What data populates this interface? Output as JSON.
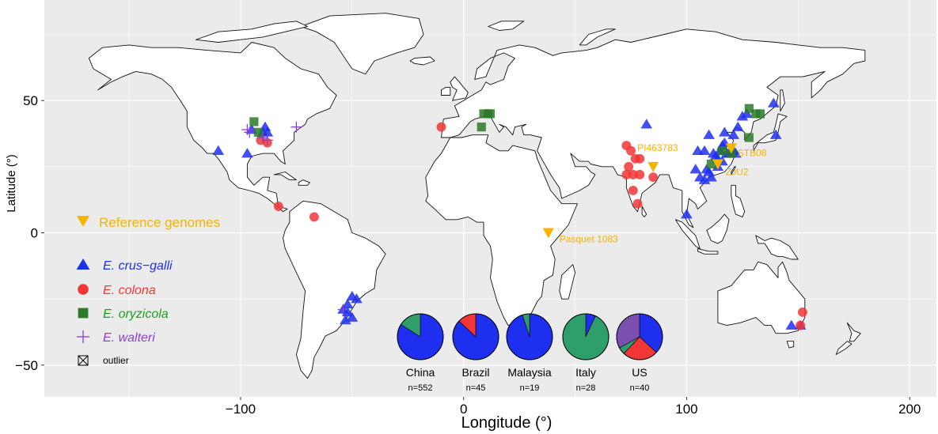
{
  "axes": {
    "xlabel": "Longitude (°)",
    "ylabel": "Latitude (°)",
    "x_ticks": [
      {
        "value": -100,
        "label": "−100"
      },
      {
        "value": 0,
        "label": "0"
      },
      {
        "value": 100,
        "label": "100"
      },
      {
        "value": 200,
        "label": "200"
      }
    ],
    "y_ticks": [
      {
        "value": 50,
        "label": "50"
      },
      {
        "value": 0,
        "label": "0"
      },
      {
        "value": -50,
        "label": "−50"
      }
    ],
    "xlim": [
      -188,
      212
    ],
    "ylim": [
      -62,
      88
    ]
  },
  "legend": {
    "reference": {
      "label": "Reference genomes",
      "color": "#f5b400"
    },
    "species": [
      {
        "key": "crus",
        "label": "E. crus−galli",
        "color": "#1f2ff0",
        "shape": "triangle"
      },
      {
        "key": "colona",
        "label": "E. colona",
        "color": "#f23535",
        "shape": "circle"
      },
      {
        "key": "oryzicola",
        "label": "E. oryzicola",
        "color": "#2a7a2a",
        "shape": "square",
        "label_color": "#1aa31a"
      },
      {
        "key": "walteri",
        "label": "E. walteri",
        "color": "#8a3fd6",
        "shape": "plus"
      }
    ],
    "outlier": {
      "label": "outlier",
      "shape": "boxed-x"
    }
  },
  "colors": {
    "panel": "#ebebeb",
    "land": "#ffffff",
    "grid": "#ffffff",
    "coast": "#111111"
  },
  "reference_genomes": [
    {
      "label": "PI463783",
      "lon": 85,
      "lat": 25
    },
    {
      "label": "STB08",
      "lon": 120,
      "lat": 32
    },
    {
      "label": "ZJU2",
      "lon": 114,
      "lat": 26
    },
    {
      "label": "Pasquet 1083",
      "lon": 38,
      "lat": 0
    }
  ],
  "chart_data": {
    "type": "scatter",
    "title": "",
    "xlabel": "Longitude (°)",
    "ylabel": "Latitude (°)",
    "xlim": [
      -188,
      212
    ],
    "ylim": [
      -62,
      88
    ],
    "series": [
      {
        "name": "E. crus−galli",
        "points": [
          [
            -110,
            31
          ],
          [
            -97,
            30
          ],
          [
            -95,
            39
          ],
          [
            -90,
            38
          ],
          [
            -88,
            38
          ],
          [
            -89,
            40
          ],
          [
            -50,
            -24
          ],
          [
            -48,
            -25
          ],
          [
            -52,
            -27
          ],
          [
            -52,
            -30
          ],
          [
            -54,
            -29
          ],
          [
            -50,
            -32
          ],
          [
            -53,
            -33
          ],
          [
            82,
            41
          ],
          [
            104,
            24
          ],
          [
            110,
            37
          ],
          [
            108,
            31
          ],
          [
            105,
            31
          ],
          [
            112,
            30
          ],
          [
            114,
            28
          ],
          [
            115,
            31
          ],
          [
            116,
            33
          ],
          [
            118,
            30
          ],
          [
            119,
            30
          ],
          [
            120,
            31
          ],
          [
            121,
            31
          ],
          [
            113,
            29
          ],
          [
            110,
            23
          ],
          [
            111,
            21
          ],
          [
            108,
            20
          ],
          [
            106,
            21
          ],
          [
            109,
            24
          ],
          [
            117,
            34
          ],
          [
            117,
            38
          ],
          [
            121,
            37
          ],
          [
            123,
            40
          ],
          [
            125,
            44
          ],
          [
            127,
            45
          ],
          [
            139,
            49
          ],
          [
            140,
            37
          ],
          [
            100,
            7
          ],
          [
            122,
            30
          ],
          [
            114,
            25
          ],
          [
            116,
            27
          ],
          [
            147,
            -35
          ],
          [
            151,
            -35
          ]
        ]
      },
      {
        "name": "E. colona",
        "points": [
          [
            -10,
            40
          ],
          [
            -83,
            10
          ],
          [
            -67,
            6
          ],
          [
            -91,
            35
          ],
          [
            -88,
            34
          ],
          [
            73,
            33
          ],
          [
            75,
            31
          ],
          [
            77,
            28
          ],
          [
            79,
            28
          ],
          [
            74,
            25
          ],
          [
            76,
            22
          ],
          [
            73,
            22
          ],
          [
            79,
            22
          ],
          [
            85,
            21
          ],
          [
            76,
            16
          ],
          [
            78,
            11
          ],
          [
            152,
            -30
          ],
          [
            151,
            -35
          ]
        ]
      },
      {
        "name": "E. oryzicola",
        "points": [
          [
            9,
            45
          ],
          [
            11,
            45
          ],
          [
            12,
            45
          ],
          [
            8,
            40
          ],
          [
            -94,
            42
          ],
          [
            -92,
            38
          ],
          [
            128,
            47
          ],
          [
            131,
            45
          ],
          [
            133,
            45
          ],
          [
            128,
            36
          ],
          [
            111,
            26
          ],
          [
            120,
            30
          ],
          [
            116,
            31
          ]
        ]
      },
      {
        "name": "E. walteri",
        "points": [
          [
            -97,
            39
          ],
          [
            -96,
            38
          ],
          [
            -90,
            36
          ],
          [
            -88,
            35
          ],
          [
            -75,
            40
          ],
          [
            -54,
            -29
          ]
        ]
      }
    ],
    "pies": [
      {
        "country": "China",
        "n_label": "n=552",
        "slices": [
          {
            "name": "E. crus−galli",
            "value": 0.84
          },
          {
            "name": "E. oryzicola",
            "value": 0.16
          }
        ]
      },
      {
        "country": "Brazil",
        "n_label": "n=45",
        "slices": [
          {
            "name": "E. crus−galli",
            "value": 0.87
          },
          {
            "name": "E. colona",
            "value": 0.13
          }
        ]
      },
      {
        "country": "Malaysia",
        "n_label": "n=19",
        "slices": [
          {
            "name": "E. crus−galli",
            "value": 0.95
          },
          {
            "name": "E. oryzicola",
            "value": 0.05
          }
        ]
      },
      {
        "country": "Italy",
        "n_label": "n=28",
        "slices": [
          {
            "name": "E. crus−galli",
            "value": 0.07
          },
          {
            "name": "E. oryzicola",
            "value": 0.93
          }
        ]
      },
      {
        "country": "US",
        "n_label": "n=40",
        "slices": [
          {
            "name": "E. crus−galli",
            "value": 0.37
          },
          {
            "name": "E. colona",
            "value": 0.25
          },
          {
            "name": "E. oryzicola",
            "value": 0.05
          },
          {
            "name": "E. walteri",
            "value": 0.33
          }
        ]
      }
    ]
  }
}
